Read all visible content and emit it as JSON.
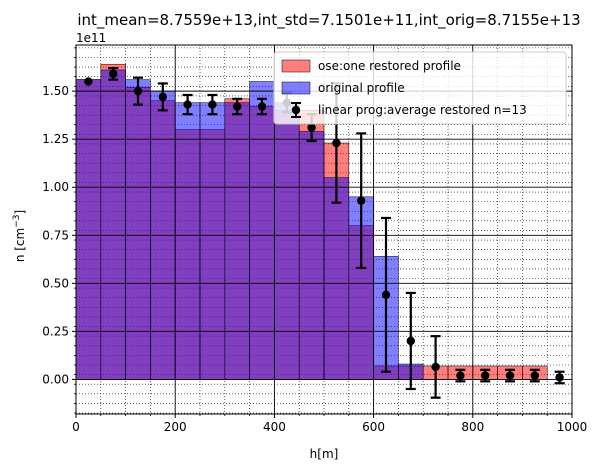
{
  "chart_data": {
    "type": "bar",
    "title": "int_mean=8.7559e+13,int_std=7.1501e+11,int_orig=8.7155e+13",
    "xlabel": "h[m]",
    "ylabel": "n [cm⁻³]",
    "y_offset_text": "1e11",
    "xlim": [
      0,
      1000
    ],
    "ylim": [
      -0.18,
      1.74
    ],
    "y_unit_scale": 100000000000.0,
    "xticks": [
      0,
      200,
      400,
      600,
      800,
      1000
    ],
    "yticks": [
      0.0,
      0.25,
      0.5,
      0.75,
      1.0,
      1.25,
      1.5
    ],
    "ytick_labels": [
      "0.00",
      "0.25",
      "0.50",
      "0.75",
      "1.00",
      "1.25",
      "1.50"
    ],
    "bin_centers": [
      25,
      75,
      125,
      175,
      225,
      275,
      325,
      375,
      425,
      475,
      525,
      575,
      625,
      675,
      725,
      775,
      825,
      875,
      925,
      975
    ],
    "bin_width": 50,
    "series": [
      {
        "name": "ose:one restored profile",
        "kind": "bar",
        "color": "#ff0000",
        "values": [
          1.56,
          1.64,
          1.52,
          1.45,
          1.3,
          1.3,
          1.46,
          1.42,
          1.4,
          1.4,
          1.23,
          0.8,
          0.07,
          0.07,
          0.07,
          0.07,
          0.07,
          0.07,
          0.07,
          0.0
        ]
      },
      {
        "name": "original profile",
        "kind": "bar",
        "color": "#0000ff",
        "values": [
          1.56,
          1.61,
          1.56,
          1.5,
          1.44,
          1.44,
          1.44,
          1.55,
          1.44,
          1.29,
          1.05,
          0.95,
          0.64,
          0.08,
          0.0,
          0.0,
          0.0,
          0.0,
          0.0,
          0.0
        ]
      },
      {
        "name": "linear prog:average restored n=13",
        "kind": "errorbar",
        "color": "#000000",
        "values": [
          1.55,
          1.59,
          1.5,
          1.47,
          1.43,
          1.43,
          1.42,
          1.42,
          1.44,
          1.31,
          1.23,
          0.93,
          0.44,
          0.2,
          0.065,
          0.02,
          0.02,
          0.02,
          0.02,
          0.01
        ],
        "errors": [
          0.0,
          0.03,
          0.07,
          0.07,
          0.05,
          0.05,
          0.04,
          0.04,
          0.05,
          0.07,
          0.31,
          0.35,
          0.4,
          0.25,
          0.16,
          0.03,
          0.03,
          0.03,
          0.03,
          0.03
        ]
      }
    ],
    "legend_position": "top-right",
    "grid": "major and minor, dotted minor",
    "overlap_color": "#7f2fbf"
  }
}
